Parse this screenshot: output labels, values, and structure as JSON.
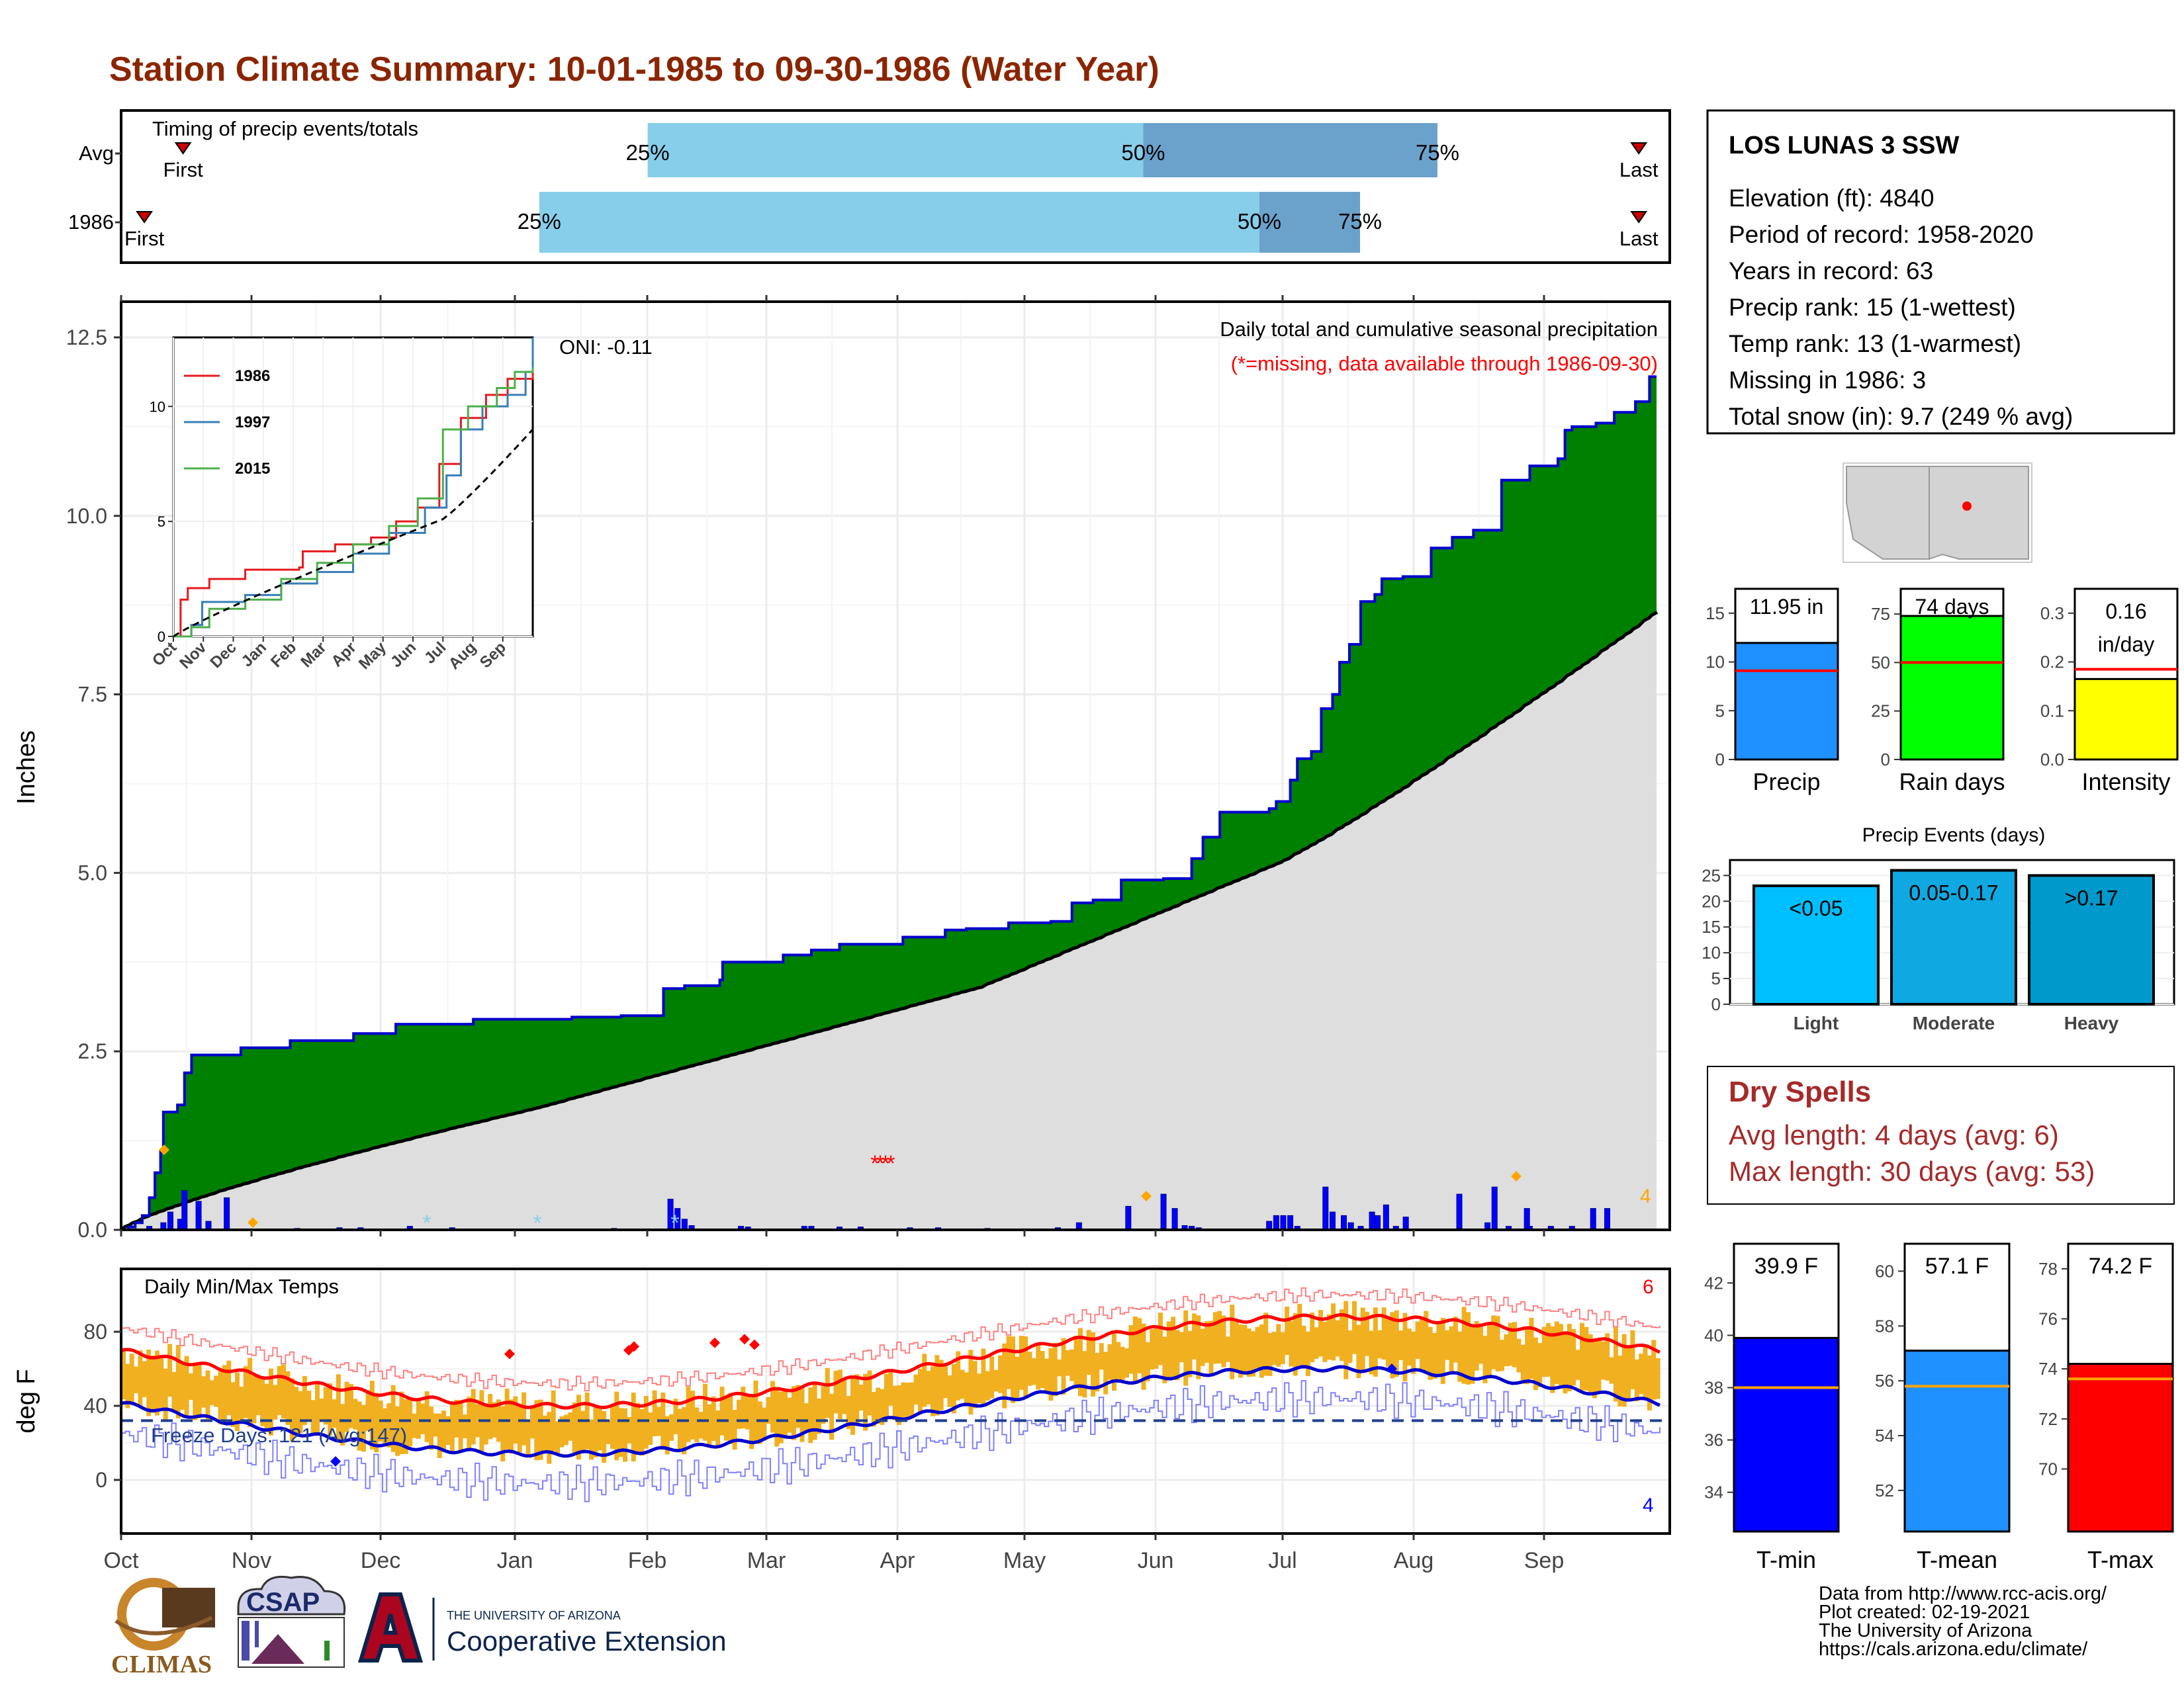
{
  "title": "Station Climate Summary: 10-01-1985 to 09-30-1986 (Water Year)",
  "months": [
    "Oct",
    "Nov",
    "Dec",
    "Jan",
    "Feb",
    "Mar",
    "Apr",
    "May",
    "Jun",
    "Jul",
    "Aug",
    "Sep"
  ],
  "colors": {
    "title": "#8b2500",
    "precip_fill": "#008000",
    "precip_line": "#0000cd",
    "avg_fill": "#dedede",
    "timing_light": "#87ceeb",
    "timing_dark": "#6aa2cc",
    "daily_bar": "#0000ff",
    "temp_bar": "#f0b020",
    "tmax_avg": "#ff0000",
    "tmin_avg": "#0000cd",
    "dry_spell_text": "#a52a2a"
  },
  "timing": {
    "title": "Timing of precip events/totals",
    "rows": [
      {
        "label": "Avg",
        "first_label": "First",
        "last_label": "Last",
        "p25_label": "25%",
        "p50_label": "50%",
        "p75_label": "75%",
        "first": 0.04,
        "p25": 0.34,
        "p50": 0.66,
        "p75": 0.85,
        "last": 0.98
      },
      {
        "label": "1986",
        "first_label": "First",
        "last_label": "Last",
        "p25_label": "25%",
        "p50_label": "50%",
        "p75_label": "75%",
        "first": 0.015,
        "p25": 0.27,
        "p50": 0.735,
        "p75": 0.8,
        "last": 0.98
      }
    ]
  },
  "station": {
    "name": "LOS LUNAS 3 SSW",
    "lines": [
      "Elevation (ft): 4840",
      "Period of record: 1958-2020",
      "Years in record: 63",
      "Precip rank: 15 (1-wettest)",
      "Temp rank: 13 (1-warmest)",
      "Missing in 1986: 3",
      "Total snow (in): 9.7 (249 % avg)"
    ]
  },
  "main_precip": {
    "ylabel": "Inches",
    "annotation_title": "Daily total and cumulative seasonal precipitation",
    "annotation_missing": "(*=missing, data available through 1986-09-30)",
    "oni": "ONI: -0.11",
    "corner_count": "4",
    "yticks": [
      "0.0",
      "2.5",
      "5.0",
      "7.5",
      "10.0",
      "12.5"
    ]
  },
  "inset": {
    "yticks": [
      "0",
      "5",
      "10"
    ],
    "legend": [
      "1986",
      "1997",
      "2015"
    ],
    "legend_colors": [
      "#e41a1c",
      "#377eb8",
      "#4daf4a"
    ]
  },
  "temps": {
    "title": "Daily Min/Max Temps",
    "ylabel": "deg F",
    "freeze": "Freeze Days: 121 (Avg:147)",
    "top_count": "6",
    "bottom_count": "4",
    "yticks": [
      "0",
      "40",
      "80"
    ]
  },
  "summary_bars": {
    "precip": {
      "label": "Precip",
      "value_text": "11.95 in",
      "value": 11.95,
      "avg": 9.1,
      "yticks": [
        "0",
        "5",
        "10",
        "15"
      ],
      "ymax": 17.5,
      "color": "#1e90ff"
    },
    "rain_days": {
      "label": "Rain days",
      "value_text": "74 days",
      "value": 74,
      "avg": 50,
      "yticks": [
        "0",
        "25",
        "50",
        "75"
      ],
      "ymax": 88,
      "color": "#00ff00"
    },
    "intensity": {
      "label": "Intensity",
      "value_text": "0.16",
      "value_unit": "in/day",
      "value": 0.165,
      "avg": 0.185,
      "yticks": [
        "0.0",
        "0.1",
        "0.2",
        "0.3"
      ],
      "ymax": 0.35,
      "color": "#ffff00"
    }
  },
  "precip_events": {
    "title": "Precip Events (days)",
    "yticks": [
      "0",
      "5",
      "10",
      "15",
      "20",
      "25"
    ],
    "bars": [
      {
        "label": "Light",
        "range": "<0.05",
        "value": 23,
        "color": "#00bfff"
      },
      {
        "label": "Moderate",
        "range": "0.05-0.17",
        "value": 26,
        "color": "#10a8e0"
      },
      {
        "label": "Heavy",
        "range": ">0.17",
        "value": 25,
        "color": "#0099cc"
      }
    ]
  },
  "dry_spells": {
    "title": "Dry Spells",
    "avg_line": "Avg length: 4 days (avg: 6)",
    "max_line": "Max length: 30 days (avg: 53)"
  },
  "temp_bars": {
    "tmin": {
      "label": "T-min",
      "value_text": "39.9 F",
      "value": 39.9,
      "avg": 38.0,
      "ymin": 32.5,
      "ymax": 43.5,
      "yticks": [
        "34",
        "36",
        "38",
        "40",
        "42"
      ],
      "color": "#0000ff"
    },
    "tmean": {
      "label": "T-mean",
      "value_text": "57.1 F",
      "value": 57.1,
      "avg": 55.8,
      "ymin": 50.5,
      "ymax": 61.0,
      "yticks": [
        "52",
        "54",
        "56",
        "58",
        "60"
      ],
      "color": "#1e90ff"
    },
    "tmax": {
      "label": "T-max",
      "value_text": "74.2 F",
      "value": 74.2,
      "avg": 73.6,
      "ymin": 67.5,
      "ymax": 79.0,
      "yticks": [
        "70",
        "72",
        "74",
        "76",
        "78"
      ],
      "color": "#ff0000"
    }
  },
  "footer": {
    "lines": [
      "Data from http://www.rcc-acis.org/",
      "Plot created: 02-19-2021",
      "The University of Arizona",
      "https://cals.arizona.edu/climate/"
    ],
    "climas": "CLIMAS",
    "csap": "CSAP",
    "ua_small": "THE UNIVERSITY OF ARIZONA",
    "coop": "Cooperative Extension"
  }
}
